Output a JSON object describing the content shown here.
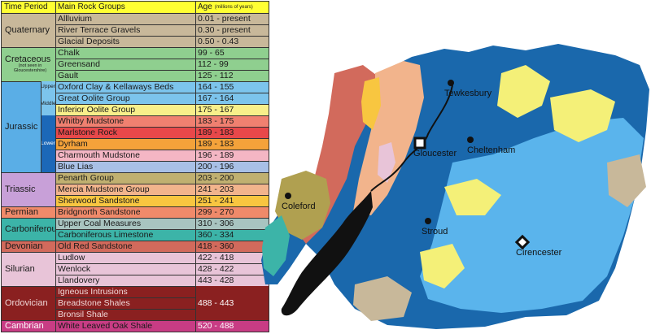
{
  "legend": {
    "headers": {
      "period": "Time Period",
      "groups": "Main Rock Groups",
      "age": "Age",
      "age_unit": "(millions of years)"
    },
    "rows": [
      {
        "name": "Allluvium",
        "age": "0.01 - present",
        "color": "#c8b89a"
      },
      {
        "name": "River Terrace Gravels",
        "age": "0.30 - present",
        "color": "#c8b89a"
      },
      {
        "name": "Glacial Deposits",
        "age": "0.50 - 0.43",
        "color": "#c8b89a"
      },
      {
        "name": "Chalk",
        "age": "99 - 65",
        "color": "#8fcf8f"
      },
      {
        "name": "Greensand",
        "age": "112 - 99",
        "color": "#8fcf8f"
      },
      {
        "name": "Gault",
        "age": "125 - 112",
        "color": "#8fcf8f"
      },
      {
        "name": "Oxford Clay & Kellaways Beds",
        "age": "164 - 155",
        "color": "#7cc4ec"
      },
      {
        "name": "Great Oolite Group",
        "age": "167 - 164",
        "color": "#7cc4ec"
      },
      {
        "name": "Inferior Oolite Group",
        "age": "175 - 167",
        "color": "#f8ef8a"
      },
      {
        "name": "Whitby Mudstone",
        "age": "183 - 175",
        "color": "#f08070"
      },
      {
        "name": "Marlstone Rock",
        "age": "189 - 183",
        "color": "#e8484a"
      },
      {
        "name": "Dyrham",
        "age": "189 - 183",
        "color": "#f4a23a"
      },
      {
        "name": "Charmouth Mudstone",
        "age": "196 - 189",
        "color": "#f4b6c4"
      },
      {
        "name": "Blue Lias",
        "age": "200 - 196",
        "color": "#a8c0e6"
      },
      {
        "name": "Penarth Group",
        "age": "203 - 200",
        "color": "#c0b070"
      },
      {
        "name": "Mercia Mudstone Group",
        "age": "241 - 203",
        "color": "#f2b48c"
      },
      {
        "name": "Sherwood Sandstone",
        "age": "251 - 241",
        "color": "#f8c640"
      },
      {
        "name": "Bridgnorth Sandstone",
        "age": "299 - 270",
        "color": "#f08a6a"
      },
      {
        "name": "Upper Coal Measures",
        "age": "310 - 306",
        "color": "#a8c4c0"
      },
      {
        "name": "Carboniferous Limestone",
        "age": "360 - 334",
        "color": "#3cb4a8"
      },
      {
        "name": "Old Red Sandstone",
        "age": "418 - 360",
        "color": "#d26a5c"
      },
      {
        "name": "Ludlow",
        "age": "422 - 418",
        "color": "#e8c4d8"
      },
      {
        "name": "Wenlock",
        "age": "428 - 422",
        "color": "#e8c4d8"
      },
      {
        "name": "Llandovery",
        "age": "443 - 428",
        "color": "#e8c4d8"
      },
      {
        "name": "Igneous Intrusions",
        "age": "",
        "color": "#8a2020"
      },
      {
        "name": "Breadstone Shales",
        "age": "",
        "color": "#8a2020"
      },
      {
        "name": "Bronsil Shale",
        "age": "",
        "color": "#8a2020"
      },
      {
        "name": "White Leaved Oak Shale",
        "age": "520 - 488",
        "color": "#c83c84"
      }
    ],
    "periods": [
      {
        "name": "Quaternary",
        "note": "",
        "color": "#c8b89a",
        "start": 0,
        "end": 3
      },
      {
        "name": "Cretaceous",
        "note": "(not seen in Gloucestershire)",
        "color": "#8fcf8f",
        "start": 3,
        "end": 6
      },
      {
        "name": "Jurassic",
        "note": "",
        "color": "#5aaee6",
        "start": 6,
        "end": 14
      },
      {
        "name": "Triassic",
        "note": "",
        "color": "#c8a0d8",
        "start": 14,
        "end": 17
      },
      {
        "name": "Permian",
        "note": "",
        "color": "#f08a6a",
        "start": 17,
        "end": 18
      },
      {
        "name": "Carboniferous",
        "note": "",
        "color": "#3cb4a8",
        "start": 18,
        "end": 20
      },
      {
        "name": "Devonian",
        "note": "",
        "color": "#d26a5c",
        "start": 20,
        "end": 21
      },
      {
        "name": "Silurian",
        "note": "",
        "color": "#e8c4d8",
        "start": 21,
        "end": 24
      },
      {
        "name": "Ordovician",
        "note": "",
        "color": "#8a2020",
        "start": 24,
        "end": 27
      },
      {
        "name": "Cambrian",
        "note": "",
        "color": "#c83c84",
        "start": 27,
        "end": 28
      }
    ],
    "epochs": [
      {
        "name": "Upper",
        "color": "#7cc4ec",
        "start": 6,
        "end": 7
      },
      {
        "name": "Middle",
        "color": "#7cc4ec",
        "start": 7,
        "end": 9
      },
      {
        "name": "Lower",
        "color": "#1c68b8",
        "start": 9,
        "end": 14
      }
    ],
    "merged_age": {
      "value": "488 - 443",
      "start": 24,
      "end": 27
    }
  },
  "map": {
    "colors": {
      "jurassic_dark": "#1a68ac",
      "oolite_light": "#5ab4ec",
      "oolite_yellow": "#f4f078",
      "mercia": "#f2b48c",
      "quaternary": "#c8b89a",
      "old_red": "#d26a5c",
      "carb_lime": "#3cb4a8",
      "coal": "#b0a050",
      "estuary": "#111111",
      "silurian": "#e8c4d8",
      "sherwood": "#f8c640",
      "town_marker": "#111111"
    },
    "towns": [
      {
        "name": "Tewkesbury",
        "marker": "dot"
      },
      {
        "name": "Gloucester",
        "marker": "square"
      },
      {
        "name": "Cheltenham",
        "marker": "dot"
      },
      {
        "name": "Coleford",
        "marker": "dot"
      },
      {
        "name": "Stroud",
        "marker": "dot"
      },
      {
        "name": "Cirencester",
        "marker": "diamond"
      }
    ]
  }
}
